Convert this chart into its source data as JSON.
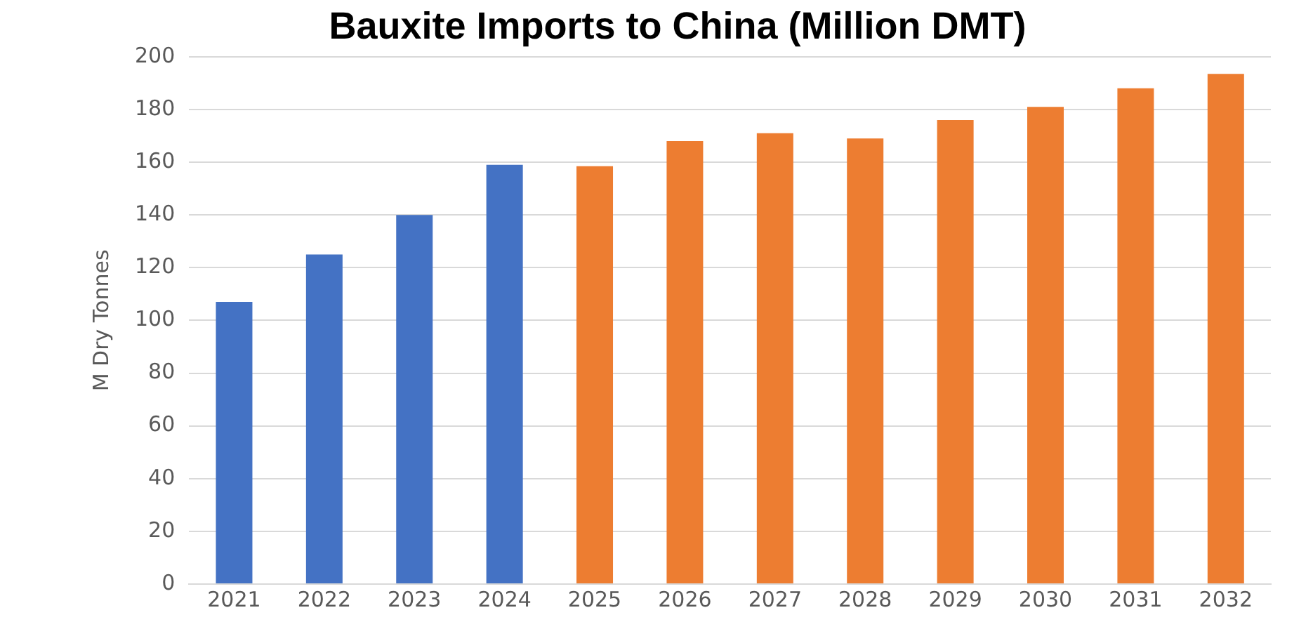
{
  "chart_data": {
    "type": "bar",
    "title": "Bauxite Imports to China (Million DMT)",
    "ylabel": "M Dry Tonnes",
    "categories": [
      "2021",
      "2022",
      "2023",
      "2024",
      "2025",
      "2026",
      "2027",
      "2028",
      "2029",
      "2030",
      "2031",
      "2032"
    ],
    "values": [
      107,
      125,
      140,
      159,
      158.5,
      168,
      171,
      169,
      176,
      181,
      188,
      193.5
    ],
    "colors": [
      "#4472c4",
      "#4472c4",
      "#4472c4",
      "#4472c4",
      "#ed7d31",
      "#ed7d31",
      "#ed7d31",
      "#ed7d31",
      "#ed7d31",
      "#ed7d31",
      "#ed7d31",
      "#ed7d31"
    ],
    "ylim": [
      0,
      200
    ],
    "yticks": [
      0,
      20,
      40,
      60,
      80,
      100,
      120,
      140,
      160,
      180,
      200
    ],
    "grid": "y"
  }
}
